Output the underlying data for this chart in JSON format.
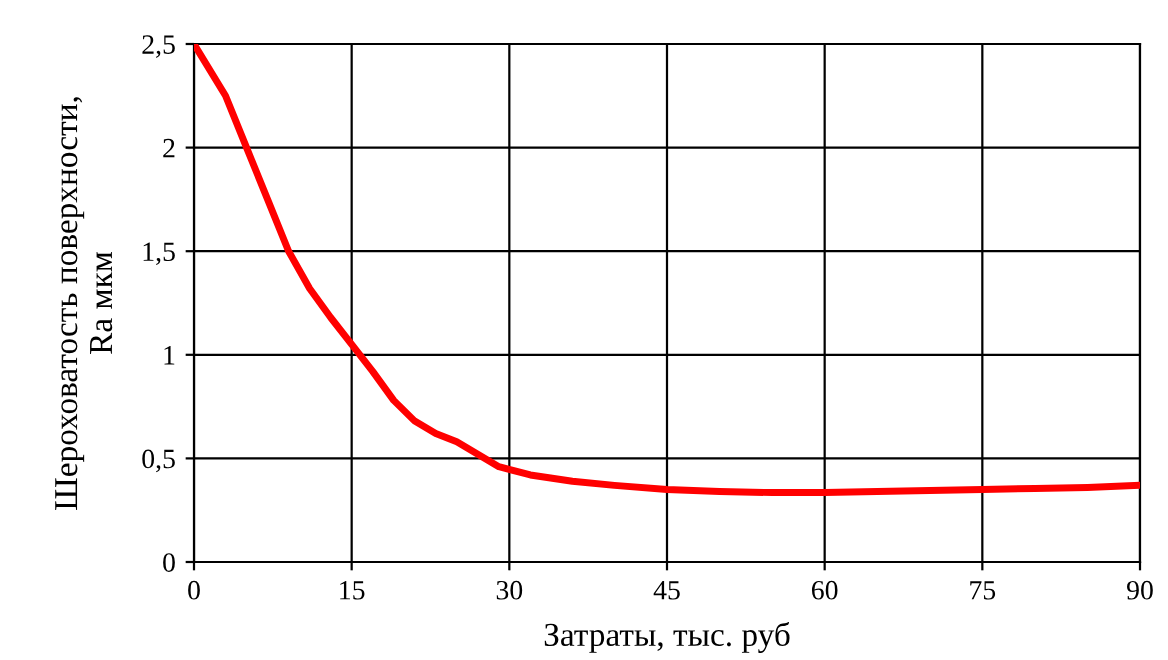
{
  "chart_data": {
    "type": "line",
    "xlabel": "Затраты, тыс. руб",
    "ylabel": "Шероховатость поверхности,\nRa мкм",
    "x": [
      0,
      3,
      5,
      7,
      9,
      11,
      13,
      15,
      17,
      19,
      21,
      23,
      25,
      27,
      29,
      32,
      36,
      40,
      45,
      50,
      55,
      60,
      65,
      70,
      75,
      80,
      85,
      90
    ],
    "series": [
      {
        "color": "#ff0000",
        "values": [
          2.5,
          2.25,
          2.0,
          1.75,
          1.5,
          1.32,
          1.18,
          1.05,
          0.92,
          0.78,
          0.68,
          0.62,
          0.58,
          0.52,
          0.46,
          0.42,
          0.39,
          0.37,
          0.35,
          0.34,
          0.335,
          0.335,
          0.34,
          0.345,
          0.35,
          0.355,
          0.36,
          0.37
        ]
      }
    ],
    "xlim": [
      0,
      90
    ],
    "xticks": [
      0,
      15,
      30,
      45,
      60,
      75,
      90
    ],
    "ylim": [
      0,
      2.5
    ],
    "yticks": [
      0,
      {
        "value": 0.5,
        "label": "0,5"
      },
      1,
      {
        "value": 1.5,
        "label": "1,5"
      },
      2,
      {
        "value": 2.5,
        "label": "2,5"
      }
    ],
    "grid": true,
    "legend": false,
    "marker": "none",
    "line_style": "solid"
  }
}
